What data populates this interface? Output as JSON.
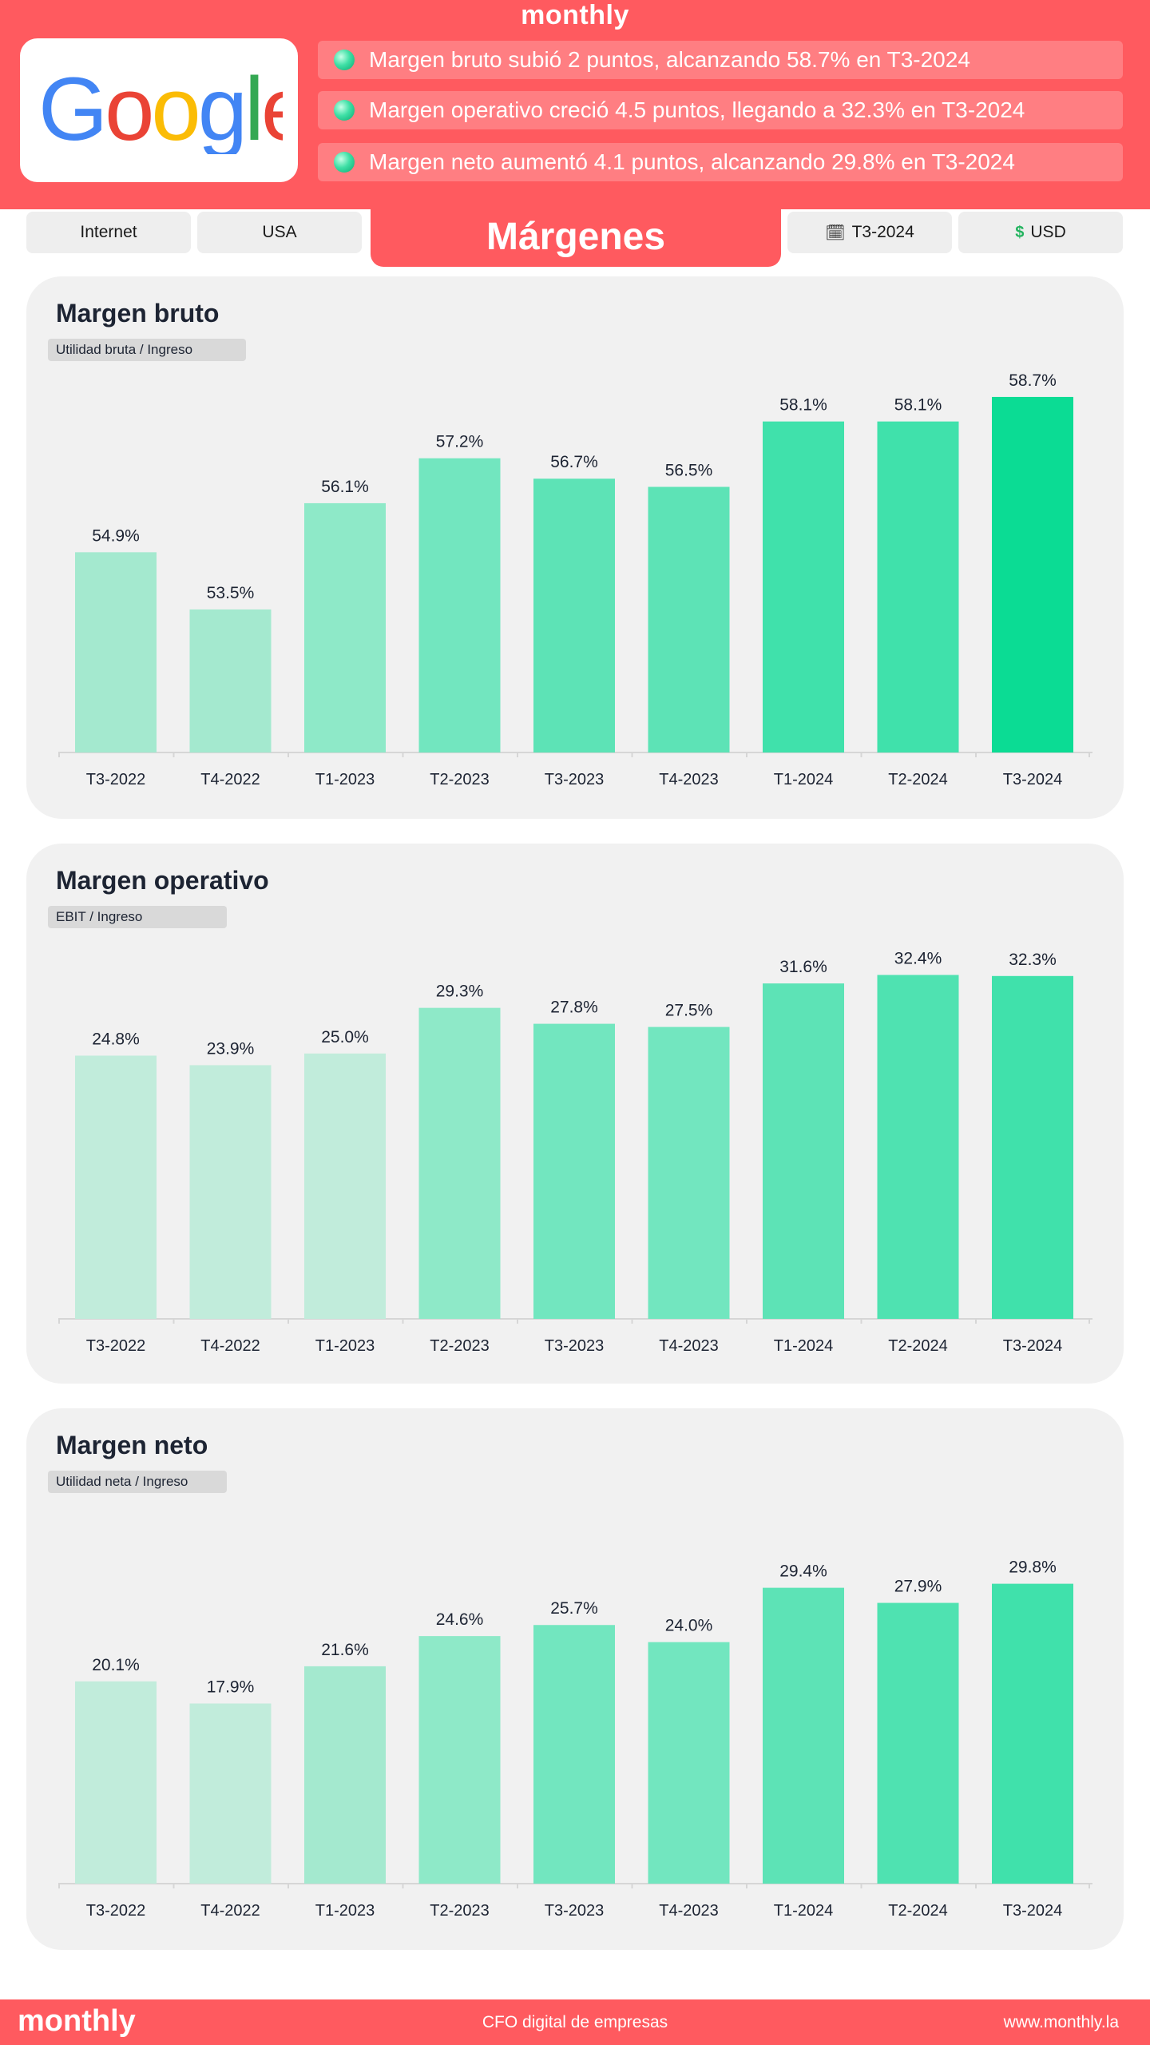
{
  "header": {
    "brand": "monthly",
    "company": "Google",
    "highlights": [
      "Margen bruto subió 2 puntos, alcanzando 58.7% en T3-2024",
      "Margen operativo creció 4.5 puntos, llegando a 32.3% en T3-2024",
      "Margen neto aumentó 4.1 puntos, alcanzando 29.8% en T3-2024"
    ]
  },
  "tags": {
    "industry": "Internet",
    "country": "USA",
    "title": "Márgenes",
    "period": "T3-2024",
    "currency": "USD",
    "period_icon": "calendar-icon",
    "currency_icon": "dollar-icon"
  },
  "footer": {
    "brand": "monthly",
    "tagline": "CFO digital de empresas",
    "url": "www.monthly.la"
  },
  "colors": {
    "brand_red": "#ff5a5f",
    "bar_shades": [
      "#c1ecdb",
      "#a4e9cf",
      "#8ee9c8",
      "#72e6bf",
      "#5de3b6",
      "#4fe2b1",
      "#40e1ab",
      "#22dd9d",
      "#0bdc94"
    ]
  },
  "chart_data": [
    {
      "type": "bar",
      "title": "Margen bruto",
      "subtitle": "Utilidad bruta /  Ingreso",
      "categories": [
        "T3-2022",
        "T4-2022",
        "T1-2023",
        "T2-2023",
        "T3-2023",
        "T4-2023",
        "T1-2024",
        "T2-2024",
        "T3-2024"
      ],
      "values": [
        54.9,
        53.5,
        56.1,
        57.2,
        56.7,
        56.5,
        58.1,
        58.1,
        58.7
      ],
      "labels": [
        "54.9%",
        "53.5%",
        "56.1%",
        "57.2%",
        "56.7%",
        "56.5%",
        "58.1%",
        "58.1%",
        "58.7%"
      ],
      "ylim": [
        50,
        59.5
      ],
      "color_index": [
        1,
        1,
        2,
        3,
        4,
        4,
        6,
        6,
        8
      ]
    },
    {
      "type": "bar",
      "title": "Margen operativo",
      "subtitle": "EBIT /  Ingreso",
      "categories": [
        "T3-2022",
        "T4-2022",
        "T1-2023",
        "T2-2023",
        "T3-2023",
        "T4-2023",
        "T1-2024",
        "T2-2024",
        "T3-2024"
      ],
      "values": [
        24.8,
        23.9,
        25.0,
        29.3,
        27.8,
        27.5,
        31.6,
        32.4,
        32.3
      ],
      "labels": [
        "24.8%",
        "23.9%",
        "25.0%",
        "29.3%",
        "27.8%",
        "27.5%",
        "31.6%",
        "32.4%",
        "32.3%"
      ],
      "ylim": [
        0,
        36.5
      ],
      "color_index": [
        0,
        0,
        0,
        2,
        3,
        3,
        4,
        5,
        6
      ]
    },
    {
      "type": "bar",
      "title": "Margen neto",
      "subtitle": "Utilidad neta /  Ingreso",
      "categories": [
        "T3-2022",
        "T4-2022",
        "T1-2023",
        "T2-2023",
        "T3-2023",
        "T4-2023",
        "T1-2024",
        "T2-2024",
        "T3-2024"
      ],
      "values": [
        20.1,
        17.9,
        21.6,
        24.6,
        25.7,
        24.0,
        29.4,
        27.9,
        29.8
      ],
      "labels": [
        "20.1%",
        "17.9%",
        "21.6%",
        "24.6%",
        "25.7%",
        "24.0%",
        "29.4%",
        "27.9%",
        "29.8%"
      ],
      "ylim": [
        0,
        38.5
      ],
      "color_index": [
        0,
        0,
        1,
        2,
        3,
        3,
        4,
        5,
        6
      ]
    }
  ]
}
